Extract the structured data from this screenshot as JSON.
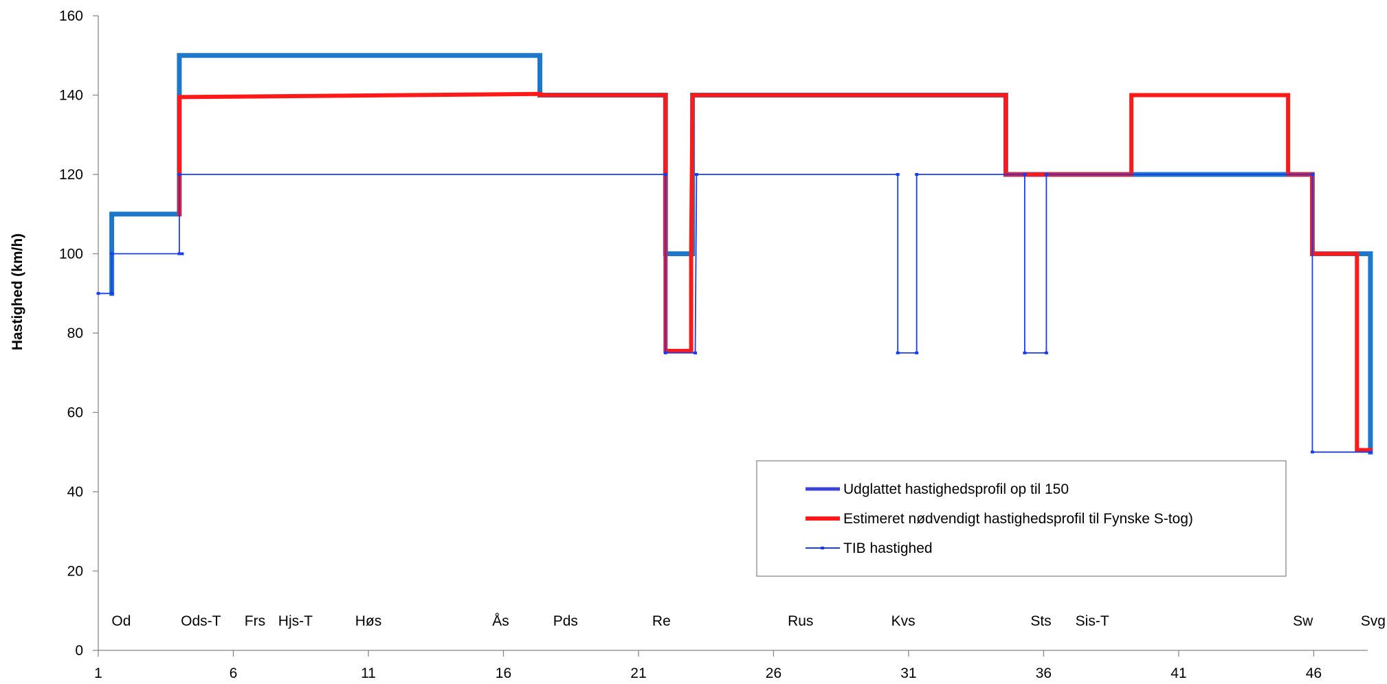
{
  "chart_data": {
    "type": "line",
    "title": "",
    "xlabel": "",
    "ylabel": "Hastighed (km/h)",
    "xlim": [
      1,
      48
    ],
    "ylim": [
      0,
      160
    ],
    "x_ticks": [
      1,
      6,
      11,
      16,
      21,
      26,
      31,
      36,
      41,
      46
    ],
    "y_ticks": [
      0,
      20,
      40,
      60,
      80,
      100,
      120,
      140,
      160
    ],
    "grid": false,
    "legend_position": "bottom-right",
    "station_labels": [
      {
        "x": 1.85,
        "label": "Od"
      },
      {
        "x": 4.8,
        "label": "Ods-T"
      },
      {
        "x": 6.8,
        "label": "Frs"
      },
      {
        "x": 8.3,
        "label": "Hjs-T"
      },
      {
        "x": 11.0,
        "label": "Høs"
      },
      {
        "x": 15.9,
        "label": "Ås"
      },
      {
        "x": 18.3,
        "label": "Pds"
      },
      {
        "x": 21.85,
        "label": "Re"
      },
      {
        "x": 27.0,
        "label": "Rus"
      },
      {
        "x": 30.8,
        "label": "Kvs"
      },
      {
        "x": 35.9,
        "label": "Sts"
      },
      {
        "x": 37.8,
        "label": "Sis-T"
      },
      {
        "x": 45.6,
        "label": "Sw"
      },
      {
        "x": 48.2,
        "label": "Svg"
      }
    ],
    "series": [
      {
        "name": "Udglattet hastighedsprofil op til 150",
        "color": "#1f77c9",
        "x": [
          1.5,
          1.5,
          4.0,
          4.0,
          17.35,
          17.35,
          22.0,
          22.0,
          23.0,
          23.0,
          34.6,
          34.6,
          45.95,
          45.95,
          48.1,
          48.1
        ],
        "y": [
          90,
          110,
          110,
          150,
          150,
          140,
          140,
          100,
          100,
          140,
          140,
          120,
          120,
          100,
          100,
          50
        ]
      },
      {
        "name": "Estimeret nødvendigt hastighedsprofil til Fynske S-tog)",
        "color": "#ff1a1a",
        "x": [
          4.0,
          4.0,
          17.35,
          17.35,
          22.0,
          22.0,
          22.95,
          22.95,
          23.0,
          34.6,
          34.6,
          39.25,
          39.25,
          45.05,
          45.05,
          45.95,
          45.95,
          47.6,
          47.6,
          48.1
        ],
        "y": [
          110,
          139.5,
          140.3,
          140,
          140,
          75.5,
          75.5,
          100,
          140,
          140,
          120,
          120,
          140,
          140,
          120,
          120,
          100,
          100,
          50.5,
          50.5
        ]
      },
      {
        "name": "TIB hastighed",
        "color": "#1a3cf0",
        "x": [
          1,
          1.5,
          1.5,
          4.1,
          4.1,
          4.0,
          4.0,
          22.0,
          22.0,
          23.1,
          23.1,
          23.15,
          23.15,
          30.6,
          30.6,
          31.3,
          31.3,
          35.3,
          35.3,
          36.1,
          36.1,
          45.95,
          45.95,
          48.1
        ],
        "y": [
          90,
          90,
          100,
          100,
          100,
          100,
          120,
          120,
          75,
          75,
          75,
          120,
          120,
          120,
          75,
          75,
          120,
          120,
          75,
          75,
          120,
          120,
          50,
          50
        ]
      }
    ]
  },
  "legend": {
    "entries": [
      "Udglattet hastighedsprofil op til 150",
      "Estimeret nødvendigt hastighedsprofil til Fynske S-tog)",
      "TIB hastighed"
    ]
  }
}
